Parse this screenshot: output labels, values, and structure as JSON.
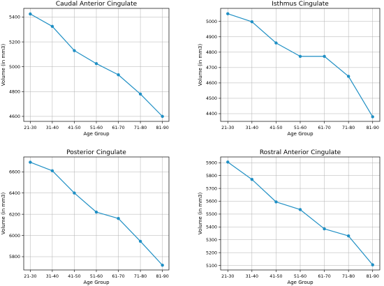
{
  "figure": {
    "line_color": "#1f8fc4",
    "grid": true
  },
  "chart_data": [
    {
      "type": "line",
      "title": "Caudal Anterior Cingulate",
      "xlabel": "Age Group",
      "ylabel": "Volume (in mm3)",
      "categories": [
        "21-30",
        "31-40",
        "41-50",
        "51-60",
        "61-70",
        "71-80",
        "81-90"
      ],
      "values": [
        5425,
        5325,
        5130,
        5025,
        4935,
        4780,
        4600
      ],
      "ylim": [
        4560,
        5470
      ],
      "yticks": [
        4600,
        4800,
        5000,
        5200,
        5400
      ]
    },
    {
      "type": "line",
      "title": "Isthmus Cingulate",
      "xlabel": "Age Group",
      "ylabel": "Volume (in mm3)",
      "categories": [
        "21-30",
        "31-40",
        "41-50",
        "51-60",
        "61-70",
        "71-80",
        "81-90"
      ],
      "values": [
        5050,
        4998,
        4860,
        4773,
        4773,
        4643,
        4380
      ],
      "ylim": [
        4350,
        5085
      ],
      "yticks": [
        4400,
        4500,
        4600,
        4700,
        4800,
        4900,
        5000
      ]
    },
    {
      "type": "line",
      "title": "Posterior Cingulate",
      "xlabel": "Age Group",
      "ylabel": "Volume (in mm3)",
      "categories": [
        "21-30",
        "31-40",
        "41-50",
        "51-60",
        "61-70",
        "71-80",
        "81-90"
      ],
      "values": [
        6690,
        6610,
        6400,
        6220,
        6160,
        5945,
        5720
      ],
      "ylim": [
        5675,
        6740
      ],
      "yticks": [
        5800,
        6000,
        6200,
        6400,
        6600
      ]
    },
    {
      "type": "line",
      "title": "Rostral Anterior Cingulate",
      "xlabel": "Age Group",
      "ylabel": "Volume (in mm3)",
      "categories": [
        "21-30",
        "31-40",
        "41-50",
        "51-60",
        "61-70",
        "71-80",
        "81-90"
      ],
      "values": [
        5905,
        5770,
        5595,
        5535,
        5385,
        5330,
        5105
      ],
      "ylim": [
        5065,
        5945
      ],
      "yticks": [
        5100,
        5200,
        5300,
        5400,
        5500,
        5600,
        5700,
        5800,
        5900
      ]
    }
  ]
}
